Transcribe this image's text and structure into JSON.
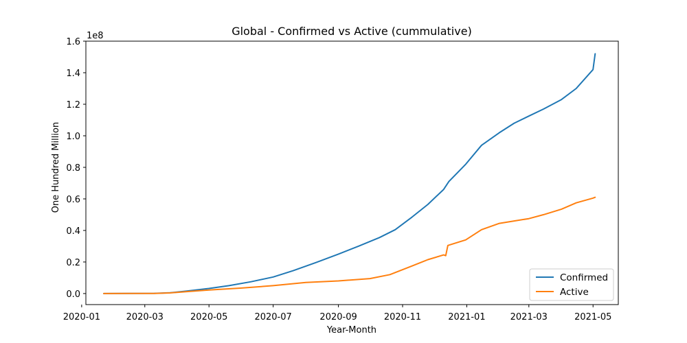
{
  "chart_data": {
    "type": "line",
    "title": "Global - Confirmed vs Active (cummulative)",
    "xlabel": "Year-Month",
    "ylabel": "One Hundred Million",
    "y_offset_label": "1e8",
    "xlim": [
      "2020-01-05",
      "2021-05-25"
    ],
    "ylim": [
      -0.07,
      1.6
    ],
    "x_ticks": [
      "2020-01",
      "2020-03",
      "2020-05",
      "2020-07",
      "2020-09",
      "2020-11",
      "2021-01",
      "2021-03",
      "2021-05"
    ],
    "y_ticks": [
      "0.0",
      "0.2",
      "0.4",
      "0.6",
      "0.8",
      "1.0",
      "1.2",
      "1.4",
      "1.6"
    ],
    "grid": false,
    "legend_position": "bottom-right",
    "series": [
      {
        "name": "Confirmed",
        "color": "#1f77b4",
        "x": [
          "2020-01-22",
          "2020-02-15",
          "2020-03-10",
          "2020-03-25",
          "2020-04-10",
          "2020-05-01",
          "2020-05-20",
          "2020-06-10",
          "2020-07-01",
          "2020-07-20",
          "2020-08-10",
          "2020-09-01",
          "2020-09-20",
          "2020-10-10",
          "2020-10-25",
          "2020-11-10",
          "2020-11-25",
          "2020-12-10",
          "2020-12-15",
          "2020-12-31",
          "2021-01-15",
          "2021-02-01",
          "2021-02-15",
          "2021-03-01",
          "2021-03-15",
          "2021-04-01",
          "2021-04-15",
          "2021-05-01",
          "2021-05-03"
        ],
        "values": [
          0.0,
          0.0007,
          0.0012,
          0.005,
          0.016,
          0.032,
          0.05,
          0.075,
          0.105,
          0.145,
          0.195,
          0.25,
          0.3,
          0.355,
          0.405,
          0.485,
          0.565,
          0.66,
          0.71,
          0.82,
          0.94,
          1.02,
          1.08,
          1.125,
          1.17,
          1.23,
          1.3,
          1.42,
          1.52
        ]
      },
      {
        "name": "Active",
        "color": "#ff7f0e",
        "x": [
          "2020-01-22",
          "2020-02-15",
          "2020-03-10",
          "2020-03-25",
          "2020-04-10",
          "2020-05-01",
          "2020-06-01",
          "2020-07-01",
          "2020-08-01",
          "2020-09-01",
          "2020-10-01",
          "2020-10-20",
          "2020-11-10",
          "2020-11-25",
          "2020-12-10",
          "2020-12-12",
          "2020-12-14",
          "2020-12-31",
          "2021-01-15",
          "2021-02-01",
          "2021-02-15",
          "2021-03-01",
          "2021-03-15",
          "2021-04-01",
          "2021-04-15",
          "2021-05-01",
          "2021-05-03"
        ],
        "values": [
          0.0,
          0.0004,
          0.0008,
          0.004,
          0.012,
          0.022,
          0.035,
          0.05,
          0.07,
          0.08,
          0.095,
          0.12,
          0.175,
          0.215,
          0.245,
          0.24,
          0.305,
          0.34,
          0.405,
          0.445,
          0.46,
          0.475,
          0.5,
          0.535,
          0.575,
          0.605,
          0.61
        ]
      }
    ]
  }
}
